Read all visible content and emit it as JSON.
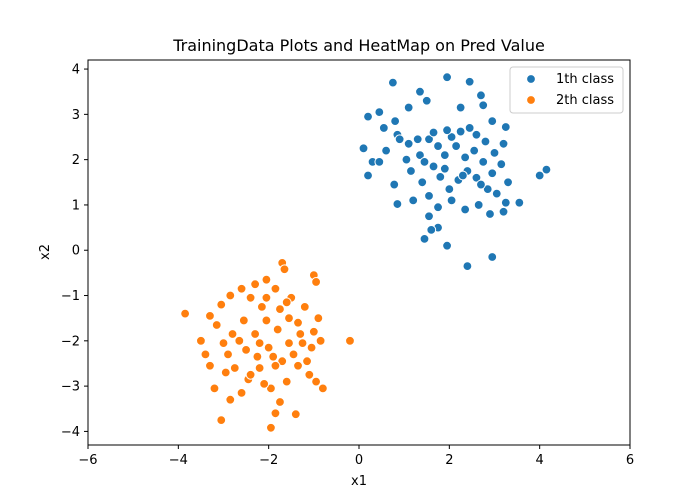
{
  "chart_data": {
    "type": "scatter",
    "title": "TrainingData Plots and HeatMap on Pred Value",
    "xlabel": "x1",
    "ylabel": "x2",
    "xlim": [
      -6,
      6
    ],
    "ylim": [
      -4.3,
      4.2
    ],
    "xticks": [
      -6,
      -4,
      -2,
      0,
      2,
      4,
      6
    ],
    "yticks": [
      -4,
      -3,
      -2,
      -1,
      0,
      1,
      2,
      3,
      4
    ],
    "xtick_labels": [
      "−6",
      "−4",
      "−2",
      "0",
      "2",
      "4",
      "6"
    ],
    "ytick_labels": [
      "−4",
      "−3",
      "−2",
      "−1",
      "0",
      "1",
      "2",
      "3",
      "4"
    ],
    "grid": false,
    "legend_position": "top-right",
    "colors": {
      "class1": "#1f77b4",
      "class2": "#ff7f0e",
      "axes": "#000000",
      "marker_edge": "#ffffff"
    },
    "series": [
      {
        "name": "1th class",
        "color": "#1f77b4",
        "points": [
          [
            0.75,
            3.7
          ],
          [
            1.35,
            3.5
          ],
          [
            1.95,
            3.82
          ],
          [
            2.45,
            3.72
          ],
          [
            2.7,
            3.42
          ],
          [
            0.2,
            2.95
          ],
          [
            0.45,
            3.05
          ],
          [
            0.8,
            2.85
          ],
          [
            1.1,
            3.15
          ],
          [
            1.5,
            3.3
          ],
          [
            2.25,
            3.15
          ],
          [
            2.75,
            3.2
          ],
          [
            2.95,
            2.85
          ],
          [
            3.25,
            2.72
          ],
          [
            0.55,
            2.7
          ],
          [
            0.1,
            2.25
          ],
          [
            0.3,
            1.95
          ],
          [
            0.45,
            1.95
          ],
          [
            0.2,
            1.65
          ],
          [
            0.78,
            1.45
          ],
          [
            0.85,
            1.02
          ],
          [
            0.85,
            2.55
          ],
          [
            1.1,
            2.35
          ],
          [
            1.35,
            2.1
          ],
          [
            1.55,
            2.45
          ],
          [
            1.75,
            2.3
          ],
          [
            1.9,
            2.1
          ],
          [
            2.05,
            2.5
          ],
          [
            2.25,
            2.62
          ],
          [
            2.45,
            2.7
          ],
          [
            2.6,
            2.55
          ],
          [
            2.8,
            2.4
          ],
          [
            3.0,
            2.15
          ],
          [
            3.2,
            2.35
          ],
          [
            3.15,
            1.9
          ],
          [
            1.15,
            1.75
          ],
          [
            1.4,
            1.5
          ],
          [
            1.65,
            1.85
          ],
          [
            1.8,
            1.62
          ],
          [
            2.0,
            1.35
          ],
          [
            2.2,
            1.55
          ],
          [
            2.4,
            1.75
          ],
          [
            2.6,
            1.6
          ],
          [
            2.85,
            1.35
          ],
          [
            3.05,
            1.25
          ],
          [
            3.25,
            1.05
          ],
          [
            3.55,
            1.05
          ],
          [
            1.2,
            1.1
          ],
          [
            1.55,
            1.2
          ],
          [
            1.75,
            0.95
          ],
          [
            2.05,
            1.1
          ],
          [
            2.35,
            0.9
          ],
          [
            2.65,
            1.0
          ],
          [
            2.9,
            0.8
          ],
          [
            3.2,
            0.85
          ],
          [
            1.55,
            0.75
          ],
          [
            1.75,
            0.5
          ],
          [
            1.6,
            0.45
          ],
          [
            1.45,
            0.25
          ],
          [
            1.95,
            0.1
          ],
          [
            2.4,
            -0.35
          ],
          [
            2.95,
            -0.15
          ],
          [
            4.0,
            1.65
          ],
          [
            4.15,
            1.78
          ],
          [
            1.05,
            2.0
          ],
          [
            1.3,
            2.45
          ],
          [
            1.65,
            2.6
          ],
          [
            1.95,
            2.65
          ],
          [
            2.15,
            2.3
          ],
          [
            2.35,
            2.05
          ],
          [
            2.55,
            2.2
          ],
          [
            2.75,
            1.95
          ],
          [
            2.95,
            1.7
          ],
          [
            1.45,
            1.95
          ],
          [
            1.9,
            1.8
          ],
          [
            2.3,
            1.65
          ],
          [
            2.7,
            1.45
          ],
          [
            0.6,
            2.2
          ],
          [
            0.9,
            2.45
          ],
          [
            3.3,
            1.5
          ]
        ]
      },
      {
        "name": "2th class",
        "color": "#ff7f0e",
        "points": [
          [
            -1.7,
            -0.28
          ],
          [
            -1.65,
            -0.42
          ],
          [
            -2.05,
            -0.65
          ],
          [
            -2.3,
            -0.75
          ],
          [
            -1.85,
            -0.85
          ],
          [
            -1.0,
            -0.55
          ],
          [
            -0.95,
            -0.7
          ],
          [
            -2.6,
            -0.85
          ],
          [
            -2.85,
            -1.0
          ],
          [
            -3.05,
            -1.2
          ],
          [
            -3.3,
            -1.45
          ],
          [
            -3.85,
            -1.4
          ],
          [
            -2.4,
            -1.05
          ],
          [
            -1.5,
            -1.05
          ],
          [
            -1.2,
            -1.25
          ],
          [
            -0.9,
            -1.5
          ],
          [
            -0.2,
            -2.0
          ],
          [
            -3.5,
            -2.0
          ],
          [
            -3.4,
            -2.3
          ],
          [
            -3.3,
            -2.55
          ],
          [
            -3.2,
            -3.05
          ],
          [
            -3.05,
            -3.75
          ],
          [
            -2.85,
            -3.3
          ],
          [
            -2.6,
            -3.15
          ],
          [
            -2.45,
            -2.85
          ],
          [
            -2.2,
            -2.6
          ],
          [
            -1.95,
            -3.05
          ],
          [
            -1.75,
            -3.35
          ],
          [
            -1.95,
            -3.92
          ],
          [
            -1.85,
            -3.6
          ],
          [
            -1.4,
            -3.62
          ],
          [
            -1.6,
            -2.9
          ],
          [
            -1.35,
            -2.55
          ],
          [
            -1.1,
            -2.75
          ],
          [
            -0.95,
            -2.9
          ],
          [
            -0.8,
            -3.05
          ],
          [
            -2.5,
            -2.2
          ],
          [
            -2.3,
            -1.85
          ],
          [
            -2.05,
            -1.55
          ],
          [
            -1.8,
            -1.75
          ],
          [
            -1.55,
            -2.05
          ],
          [
            -1.3,
            -1.85
          ],
          [
            -1.05,
            -2.15
          ],
          [
            -0.85,
            -2.0
          ],
          [
            -2.75,
            -2.6
          ],
          [
            -2.95,
            -2.7
          ],
          [
            -2.25,
            -2.35
          ],
          [
            -2.0,
            -2.15
          ],
          [
            -1.7,
            -2.45
          ],
          [
            -1.45,
            -2.3
          ],
          [
            -1.25,
            -2.05
          ],
          [
            -1.55,
            -1.5
          ],
          [
            -1.75,
            -1.3
          ],
          [
            -2.15,
            -1.25
          ],
          [
            -2.55,
            -1.55
          ],
          [
            -2.8,
            -1.85
          ],
          [
            -3.0,
            -2.05
          ],
          [
            -2.65,
            -2.0
          ],
          [
            -2.4,
            -2.75
          ],
          [
            -2.1,
            -2.95
          ],
          [
            -1.85,
            -2.55
          ],
          [
            -1.15,
            -2.45
          ],
          [
            -1.0,
            -1.8
          ],
          [
            -3.15,
            -1.65
          ],
          [
            -2.05,
            -1.05
          ],
          [
            -1.6,
            -1.15
          ],
          [
            -1.35,
            -1.6
          ],
          [
            -2.9,
            -2.3
          ],
          [
            -2.2,
            -2.05
          ],
          [
            -1.9,
            -2.35
          ]
        ]
      }
    ]
  }
}
